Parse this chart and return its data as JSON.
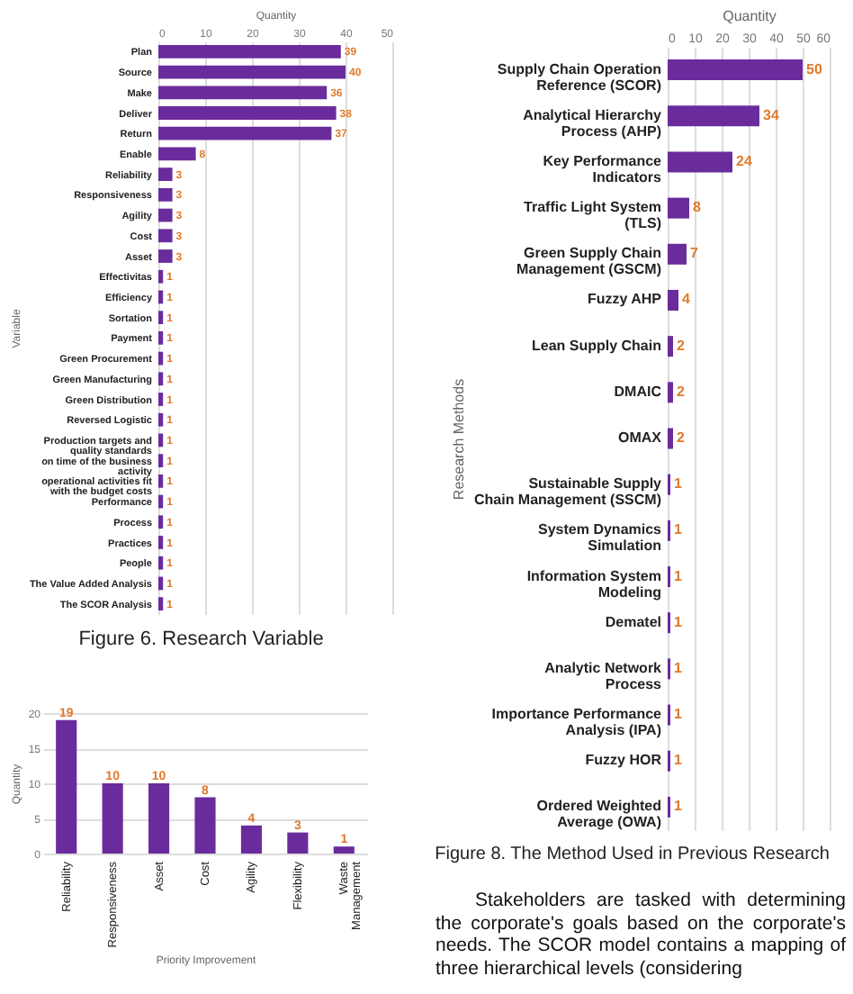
{
  "chart_data": [
    {
      "type": "bar",
      "orientation": "horizontal",
      "title": "Figure 6. Research Variable",
      "xlabel": "Quantity",
      "ylabel": "Variable",
      "categories": [
        "Plan",
        "Source",
        "Make",
        "Deliver",
        "Return",
        "Enable",
        "Reliability",
        "Responsiveness",
        "Agility",
        "Cost",
        "Asset",
        "Effectivitas",
        "Efficiency",
        "Sortation",
        "Payment",
        "Green Procurement",
        "Green Manufacturing",
        "Green Distribution",
        "Reversed Logistic",
        "Production targets and quality standards",
        "on time of the business activity",
        "operational activities fit with the budget costs",
        "Performance",
        "Process",
        "Practices",
        "People",
        "The Value Added Analysis",
        "The SCOR Analysis"
      ],
      "values": [
        39,
        40,
        36,
        38,
        37,
        8,
        3,
        3,
        3,
        3,
        3,
        1,
        1,
        1,
        1,
        1,
        1,
        1,
        1,
        1,
        1,
        1,
        1,
        1,
        1,
        1,
        1,
        1
      ],
      "color": "#6a2c9c",
      "xlim": [
        0,
        50
      ],
      "xticks": [
        0,
        10,
        20,
        30,
        40,
        50
      ],
      "grid": "x",
      "data_labels": true
    },
    {
      "type": "bar",
      "xlabel": "Priority Improvement",
      "ylabel": "Quantity",
      "categories": [
        "Reliability",
        "Responsiveness",
        "Asset",
        "Cost",
        "Agility",
        "Flexibility",
        "Waste Management"
      ],
      "values": [
        19,
        10,
        10,
        8,
        4,
        3,
        1
      ],
      "color": "#6a2c9c",
      "ylim": [
        0,
        20
      ],
      "yticks": [
        0,
        5,
        10,
        15,
        20
      ],
      "grid": "y",
      "data_labels": true
    },
    {
      "type": "bar",
      "orientation": "horizontal",
      "title": "Figure 8. The Method Used in Previous Research",
      "xlabel": "Quantity",
      "ylabel": "Research Methods",
      "categories": [
        "Supply Chain Operation Reference (SCOR)",
        "Analytical Hierarchy Process (AHP)",
        "Key Performance Indicators",
        "Traffic Light System (TLS)",
        "Green Supply Chain Management (GSCM)",
        "Fuzzy AHP",
        "Lean Supply Chain",
        "DMAIC",
        "OMAX",
        "Sustainable Supply Chain Management (SSCM)",
        "System Dynamics Simulation",
        "Information System Modeling",
        "Dematel",
        "Analytic Network Process",
        "Importance Performance Analysis (IPA)",
        "Fuzzy HOR",
        "Ordered Weighted Average (OWA)"
      ],
      "values": [
        50,
        34,
        24,
        8,
        7,
        4,
        2,
        2,
        2,
        1,
        1,
        1,
        1,
        1,
        1,
        1,
        1
      ],
      "color": "#6a2c9c",
      "xlim": [
        0,
        60
      ],
      "xticks": [
        0,
        10,
        20,
        30,
        40,
        50,
        60
      ],
      "grid": "x",
      "data_labels": true,
      "annotations": [
        "Stakeholders are tasked with determining the corporate's goals based on the corporate's needs. The SCOR model contains a mapping of three hierarchical levels (considering"
      ]
    }
  ]
}
